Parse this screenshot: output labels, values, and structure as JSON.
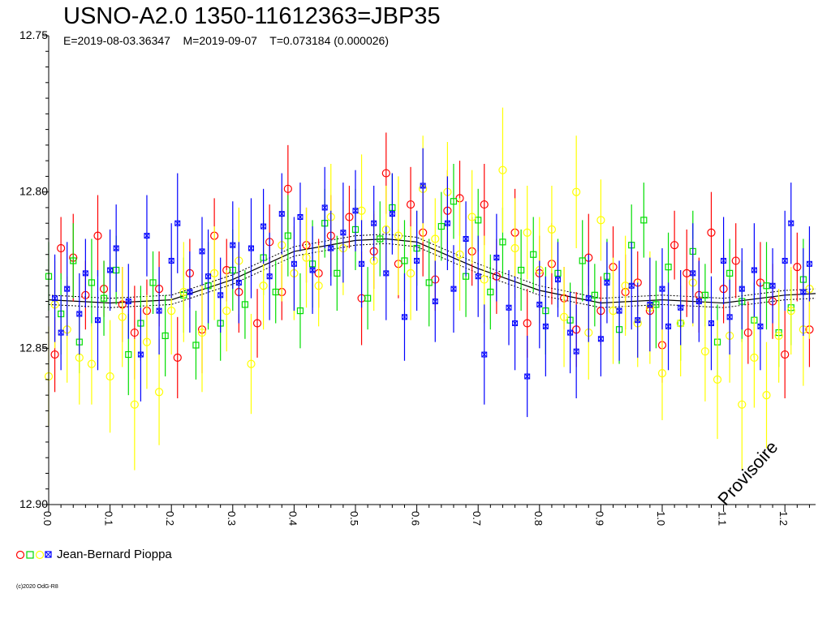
{
  "chart_data": {
    "type": "scatter",
    "title": "USNO-A2.0 1350-11612363=JBP35",
    "subtitle": "E=2019-08-03.36347    M=2019-09-07    T=0.073184 (0.000026)",
    "xlabel": "",
    "ylabel": "",
    "xlim": [
      0,
      1.25
    ],
    "ylim": [
      12.9,
      12.75
    ],
    "y_inverted": true,
    "x_ticks": [
      "0.0",
      "0.1",
      "0.2",
      "0.3",
      "0.4",
      "0.5",
      "0.6",
      "0.7",
      "0.8",
      "0.9",
      "1.0",
      "1.1",
      "1.2"
    ],
    "y_ticks": [
      "12.75",
      "12.80",
      "12.85",
      "12.90"
    ],
    "grid": false,
    "legend": {
      "placement": "bottom-left",
      "observer": "Jean-Bernard Pioppa"
    },
    "watermark": "Provisoire",
    "copyright": "(c)2020 OdG-R8",
    "model_curve": {
      "x": [
        0.0,
        0.1,
        0.2,
        0.3,
        0.4,
        0.5,
        0.55,
        0.6,
        0.7,
        0.8,
        0.9,
        1.0,
        1.1,
        1.2,
        1.25
      ],
      "y": [
        12.8345,
        12.8355,
        12.8345,
        12.828,
        12.819,
        12.8155,
        12.815,
        12.816,
        12.8245,
        12.8315,
        12.8355,
        12.8345,
        12.8355,
        12.833,
        12.8325
      ],
      "band": 0.0015
    },
    "series": [
      {
        "name": "",
        "marker": "circle",
        "color": "#ff0000",
        "x": [
          0.01,
          0.02,
          0.04,
          0.06,
          0.08,
          0.09,
          0.12,
          0.14,
          0.16,
          0.18,
          0.21,
          0.23,
          0.25,
          0.27,
          0.29,
          0.31,
          0.34,
          0.36,
          0.38,
          0.39,
          0.42,
          0.44,
          0.46,
          0.49,
          0.51,
          0.53,
          0.55,
          0.57,
          0.59,
          0.61,
          0.63,
          0.65,
          0.67,
          0.69,
          0.71,
          0.73,
          0.76,
          0.78,
          0.8,
          0.82,
          0.84,
          0.86,
          0.88,
          0.9,
          0.92,
          0.94,
          0.96,
          0.98,
          1.0,
          1.02,
          1.04,
          1.06,
          1.08,
          1.1,
          1.12,
          1.14,
          1.16,
          1.18,
          1.2,
          1.22,
          1.24
        ],
        "y": [
          12.852,
          12.818,
          12.821,
          12.833,
          12.814,
          12.831,
          12.836,
          12.845,
          12.838,
          12.831,
          12.853,
          12.826,
          12.844,
          12.814,
          12.825,
          12.832,
          12.842,
          12.816,
          12.832,
          12.799,
          12.817,
          12.826,
          12.814,
          12.808,
          12.834,
          12.819,
          12.794,
          12.823,
          12.804,
          12.813,
          12.828,
          12.806,
          12.802,
          12.819,
          12.804,
          12.827,
          12.813,
          12.842,
          12.826,
          12.823,
          12.834,
          12.844,
          12.821,
          12.838,
          12.824,
          12.832,
          12.829,
          12.838,
          12.849,
          12.817,
          12.826,
          12.833,
          12.813,
          12.831,
          12.822,
          12.845,
          12.829,
          12.835,
          12.852,
          12.824,
          12.844
        ],
        "err": [
          0.012,
          0.01,
          0.014,
          0.011,
          0.013,
          0.009,
          0.012,
          0.015,
          0.01,
          0.012,
          0.013,
          0.011,
          0.014,
          0.012,
          0.01,
          0.013,
          0.011,
          0.012,
          0.009,
          0.014,
          0.012,
          0.011,
          0.013,
          0.01,
          0.015,
          0.012,
          0.013,
          0.011,
          0.012,
          0.014,
          0.01,
          0.013,
          0.012,
          0.011,
          0.013,
          0.012,
          0.014,
          0.011,
          0.012,
          0.013,
          0.01,
          0.012,
          0.014,
          0.011,
          0.013,
          0.012,
          0.01,
          0.013,
          0.012,
          0.011,
          0.014,
          0.012,
          0.013,
          0.011,
          0.012,
          0.01,
          0.013,
          0.012,
          0.014,
          0.011,
          0.012
        ]
      },
      {
        "name": "",
        "marker": "square",
        "color": "#00dd00",
        "x": [
          0.0,
          0.02,
          0.04,
          0.05,
          0.07,
          0.09,
          0.11,
          0.13,
          0.15,
          0.17,
          0.19,
          0.22,
          0.24,
          0.26,
          0.28,
          0.3,
          0.32,
          0.35,
          0.37,
          0.39,
          0.41,
          0.43,
          0.45,
          0.47,
          0.5,
          0.52,
          0.54,
          0.56,
          0.58,
          0.6,
          0.62,
          0.64,
          0.66,
          0.68,
          0.7,
          0.72,
          0.74,
          0.77,
          0.79,
          0.81,
          0.83,
          0.85,
          0.87,
          0.89,
          0.91,
          0.93,
          0.95,
          0.97,
          0.99,
          1.01,
          1.03,
          1.05,
          1.07,
          1.09,
          1.11,
          1.13,
          1.15,
          1.17,
          1.19,
          1.21,
          1.23
        ],
        "y": [
          12.827,
          12.839,
          12.822,
          12.848,
          12.829,
          12.834,
          12.825,
          12.852,
          12.842,
          12.829,
          12.846,
          12.833,
          12.849,
          12.83,
          12.842,
          12.825,
          12.836,
          12.821,
          12.832,
          12.814,
          12.838,
          12.823,
          12.81,
          12.826,
          12.812,
          12.834,
          12.815,
          12.805,
          12.822,
          12.818,
          12.829,
          12.811,
          12.803,
          12.827,
          12.809,
          12.832,
          12.816,
          12.825,
          12.82,
          12.838,
          12.826,
          12.841,
          12.822,
          12.833,
          12.827,
          12.844,
          12.817,
          12.809,
          12.836,
          12.824,
          12.842,
          12.819,
          12.833,
          12.848,
          12.826,
          12.835,
          12.841,
          12.83,
          12.845,
          12.837,
          12.828
        ],
        "err": [
          0.011,
          0.013,
          0.012,
          0.01,
          0.014,
          0.012,
          0.011,
          0.013,
          0.012,
          0.01,
          0.013,
          0.012,
          0.011,
          0.014,
          0.012,
          0.013,
          0.011,
          0.012,
          0.01,
          0.013,
          0.012,
          0.014,
          0.011,
          0.012,
          0.013,
          0.01,
          0.012,
          0.011,
          0.013,
          0.012,
          0.014,
          0.011,
          0.012,
          0.013,
          0.01,
          0.012,
          0.011,
          0.013,
          0.012,
          0.014,
          0.011,
          0.012,
          0.013,
          0.01,
          0.012,
          0.011,
          0.013,
          0.012,
          0.014,
          0.011,
          0.012,
          0.013,
          0.01,
          0.012,
          0.011,
          0.013,
          0.012,
          0.014,
          0.011,
          0.012,
          0.013
        ]
      },
      {
        "name": "",
        "marker": "circle",
        "color": "#ffff00",
        "x": [
          0.0,
          0.01,
          0.03,
          0.05,
          0.07,
          0.1,
          0.12,
          0.14,
          0.16,
          0.18,
          0.2,
          0.22,
          0.25,
          0.27,
          0.29,
          0.31,
          0.33,
          0.35,
          0.38,
          0.4,
          0.42,
          0.44,
          0.46,
          0.48,
          0.51,
          0.53,
          0.55,
          0.57,
          0.59,
          0.61,
          0.63,
          0.65,
          0.67,
          0.69,
          0.71,
          0.74,
          0.76,
          0.78,
          0.8,
          0.82,
          0.84,
          0.86,
          0.88,
          0.9,
          0.92,
          0.94,
          0.96,
          0.98,
          1.0,
          1.03,
          1.05,
          1.07,
          1.09,
          1.11,
          1.13,
          1.15,
          1.17,
          1.19,
          1.21,
          1.23,
          1.24
        ],
        "y": [
          12.859,
          12.836,
          12.844,
          12.853,
          12.855,
          12.859,
          12.84,
          12.868,
          12.848,
          12.864,
          12.838,
          12.832,
          12.845,
          12.826,
          12.838,
          12.822,
          12.855,
          12.83,
          12.817,
          12.826,
          12.821,
          12.83,
          12.808,
          12.818,
          12.806,
          12.822,
          12.812,
          12.814,
          12.826,
          12.799,
          12.815,
          12.8,
          12.82,
          12.808,
          12.828,
          12.793,
          12.818,
          12.813,
          12.825,
          12.812,
          12.84,
          12.8,
          12.845,
          12.809,
          12.838,
          12.83,
          12.842,
          12.837,
          12.858,
          12.842,
          12.829,
          12.851,
          12.86,
          12.846,
          12.868,
          12.853,
          12.865,
          12.846,
          12.838,
          12.844,
          12.831
        ],
        "err": [
          0.016,
          0.014,
          0.017,
          0.015,
          0.013,
          0.018,
          0.016,
          0.021,
          0.015,
          0.017,
          0.014,
          0.016,
          0.019,
          0.015,
          0.013,
          0.017,
          0.016,
          0.014,
          0.018,
          0.015,
          0.016,
          0.013,
          0.017,
          0.015,
          0.018,
          0.016,
          0.014,
          0.019,
          0.015,
          0.017,
          0.013,
          0.016,
          0.018,
          0.015,
          0.014,
          0.02,
          0.016,
          0.015,
          0.017,
          0.014,
          0.016,
          0.018,
          0.015,
          0.013,
          0.017,
          0.016,
          0.014,
          0.018,
          0.015,
          0.017,
          0.014,
          0.016,
          0.019,
          0.015,
          0.021,
          0.016,
          0.017,
          0.015,
          0.014,
          0.018,
          0.016
        ]
      },
      {
        "name": "",
        "marker": "x-square",
        "color": "#0000ff",
        "x": [
          0.01,
          0.02,
          0.03,
          0.05,
          0.06,
          0.08,
          0.1,
          0.11,
          0.13,
          0.15,
          0.16,
          0.18,
          0.2,
          0.21,
          0.23,
          0.25,
          0.26,
          0.28,
          0.3,
          0.31,
          0.33,
          0.35,
          0.36,
          0.38,
          0.4,
          0.41,
          0.43,
          0.45,
          0.46,
          0.48,
          0.5,
          0.51,
          0.53,
          0.55,
          0.56,
          0.58,
          0.6,
          0.61,
          0.63,
          0.65,
          0.66,
          0.68,
          0.7,
          0.71,
          0.73,
          0.75,
          0.76,
          0.78,
          0.8,
          0.81,
          0.83,
          0.85,
          0.86,
          0.88,
          0.9,
          0.91,
          0.93,
          0.95,
          0.96,
          0.98,
          1.0,
          1.01,
          1.03,
          1.05,
          1.06,
          1.08,
          1.1,
          1.11,
          1.13,
          1.15,
          1.16,
          1.18,
          1.2,
          1.21,
          1.23,
          1.24
        ],
        "y": [
          12.834,
          12.845,
          12.831,
          12.839,
          12.826,
          12.841,
          12.825,
          12.818,
          12.835,
          12.852,
          12.814,
          12.838,
          12.822,
          12.81,
          12.832,
          12.819,
          12.827,
          12.833,
          12.817,
          12.829,
          12.818,
          12.811,
          12.827,
          12.807,
          12.823,
          12.808,
          12.825,
          12.805,
          12.818,
          12.813,
          12.806,
          12.823,
          12.81,
          12.826,
          12.807,
          12.84,
          12.822,
          12.798,
          12.835,
          12.81,
          12.831,
          12.815,
          12.827,
          12.852,
          12.821,
          12.837,
          12.842,
          12.859,
          12.836,
          12.843,
          12.828,
          12.845,
          12.851,
          12.834,
          12.847,
          12.829,
          12.838,
          12.83,
          12.841,
          12.836,
          12.831,
          12.843,
          12.837,
          12.826,
          12.835,
          12.842,
          12.822,
          12.84,
          12.831,
          12.825,
          12.843,
          12.83,
          12.822,
          12.81,
          12.832,
          12.823
        ],
        "err": [
          0.014,
          0.012,
          0.015,
          0.013,
          0.011,
          0.016,
          0.013,
          0.014,
          0.012,
          0.015,
          0.013,
          0.014,
          0.012,
          0.016,
          0.013,
          0.011,
          0.015,
          0.012,
          0.014,
          0.013,
          0.016,
          0.012,
          0.014,
          0.013,
          0.015,
          0.011,
          0.014,
          0.013,
          0.012,
          0.016,
          0.013,
          0.014,
          0.012,
          0.015,
          0.013,
          0.014,
          0.016,
          0.012,
          0.013,
          0.015,
          0.014,
          0.012,
          0.013,
          0.016,
          0.014,
          0.012,
          0.015,
          0.013,
          0.014,
          0.016,
          0.012,
          0.013,
          0.015,
          0.014,
          0.012,
          0.013,
          0.016,
          0.014,
          0.012,
          0.015,
          0.013,
          0.014,
          0.012,
          0.016,
          0.013,
          0.015,
          0.014,
          0.012,
          0.013,
          0.015,
          0.014,
          0.012,
          0.016,
          0.013,
          0.014,
          0.012
        ]
      }
    ]
  }
}
